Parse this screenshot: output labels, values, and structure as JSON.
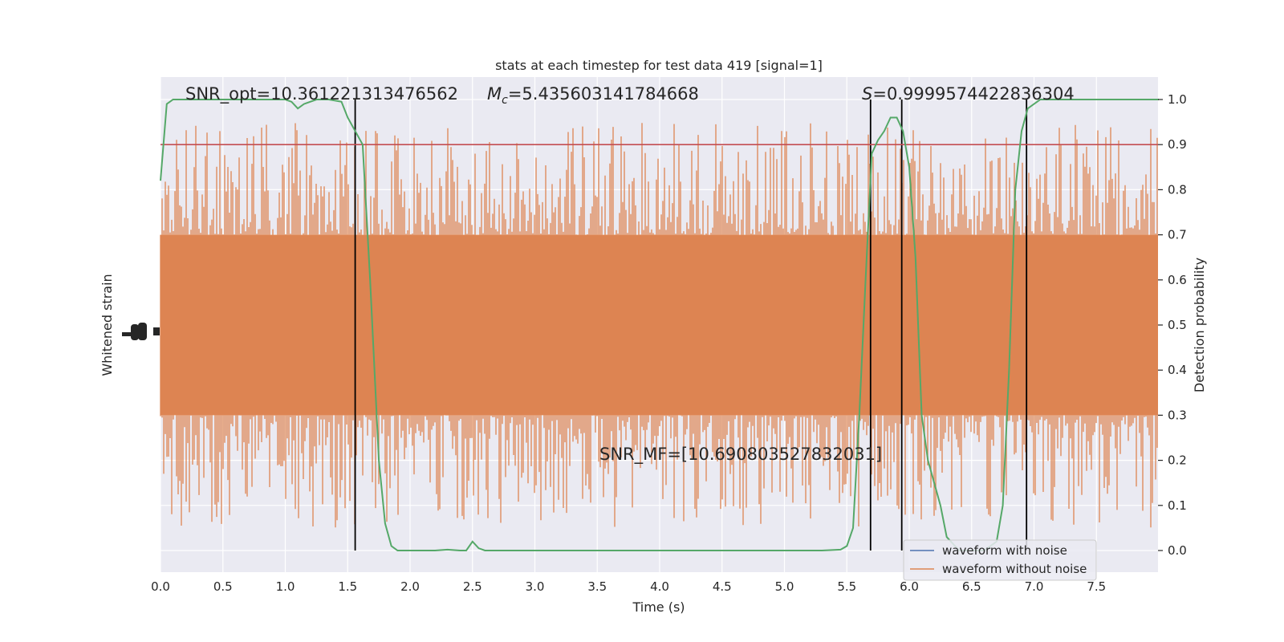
{
  "chart_data": {
    "type": "line",
    "title": "stats at each timestep for test data 419 [signal=1]",
    "xlabel": "Time (s)",
    "ylabel_left": "Whitened strain",
    "ylabel_right": "Detection probability",
    "xlim": [
      0,
      8
    ],
    "ylim_right": [
      -0.05,
      1.05
    ],
    "x_ticks": [
      "0.0",
      "0.5",
      "1.0",
      "1.5",
      "2.0",
      "2.5",
      "3.0",
      "3.5",
      "4.0",
      "4.5",
      "5.0",
      "5.5",
      "6.0",
      "6.5",
      "7.0",
      "7.5"
    ],
    "x_tick_values": [
      0,
      0.5,
      1,
      1.5,
      2,
      2.5,
      3,
      3.5,
      4,
      4.5,
      5,
      5.5,
      6,
      6.5,
      7,
      7.5
    ],
    "right_ticks": [
      "0.0",
      "0.1",
      "0.2",
      "0.3",
      "0.4",
      "0.5",
      "0.6",
      "0.7",
      "0.8",
      "0.9",
      "1.0"
    ],
    "right_tick_values": [
      0,
      0.1,
      0.2,
      0.3,
      0.4,
      0.5,
      0.6,
      0.7,
      0.8,
      0.9,
      1.0
    ],
    "grid": true,
    "legend_position": "lower-right",
    "legend": [
      {
        "name": "waveform with noise",
        "color": "#4c72b0"
      },
      {
        "name": "waveform without noise",
        "color": "#dd8452"
      }
    ],
    "annotations": {
      "snr_opt": "SNR_opt=10.361221313476562",
      "mc_symbol": "M",
      "mc_sub": "c",
      "mc_value": "=5.435603141784668",
      "s_symbol": "S",
      "s_value": "=0.9999574422836304",
      "snr_mf": "SNR_MF=[10.690803527832031]"
    },
    "threshold": {
      "value": 0.9,
      "color": "#c44e52"
    },
    "vertical_lines": [
      1.56,
      5.69,
      5.94,
      6.94
    ],
    "noise_band": {
      "low": 0.3,
      "high": 0.7,
      "color": "#dd8452"
    },
    "detection_probability": {
      "color": "#55a868",
      "x": [
        0.0,
        0.05,
        0.1,
        0.2,
        0.4,
        0.6,
        0.8,
        0.9,
        1.0,
        1.05,
        1.1,
        1.15,
        1.25,
        1.35,
        1.45,
        1.5,
        1.56,
        1.62,
        1.68,
        1.75,
        1.8,
        1.85,
        1.9,
        2.0,
        2.1,
        2.2,
        2.3,
        2.4,
        2.45,
        2.5,
        2.55,
        2.6,
        2.7,
        2.8,
        3.0,
        3.5,
        4.0,
        4.5,
        5.0,
        5.3,
        5.45,
        5.5,
        5.55,
        5.6,
        5.65,
        5.7,
        5.75,
        5.8,
        5.85,
        5.9,
        5.95,
        6.0,
        6.05,
        6.1,
        6.15,
        6.2,
        6.25,
        6.3,
        6.4,
        6.5,
        6.6,
        6.7,
        6.75,
        6.8,
        6.85,
        6.9,
        6.95,
        7.0,
        7.05,
        7.1,
        7.2,
        7.5,
        8.0
      ],
      "y": [
        0.82,
        0.99,
        1.0,
        1.0,
        1.0,
        1.0,
        1.0,
        1.0,
        1.0,
        0.995,
        0.98,
        0.99,
        1.0,
        1.0,
        0.995,
        0.96,
        0.93,
        0.9,
        0.6,
        0.2,
        0.06,
        0.01,
        0.0,
        0.0,
        0.0,
        0.0,
        0.002,
        0.0,
        0.0,
        0.02,
        0.005,
        0.0,
        0.0,
        0.0,
        0.0,
        0.0,
        0.0,
        0.0,
        0.0,
        0.0,
        0.002,
        0.01,
        0.05,
        0.3,
        0.6,
        0.88,
        0.91,
        0.93,
        0.96,
        0.96,
        0.93,
        0.85,
        0.65,
        0.3,
        0.2,
        0.15,
        0.1,
        0.03,
        0.0,
        0.0,
        0.0,
        0.02,
        0.1,
        0.4,
        0.8,
        0.93,
        0.98,
        0.99,
        1.0,
        1.0,
        1.0,
        1.0,
        1.0
      ]
    }
  }
}
